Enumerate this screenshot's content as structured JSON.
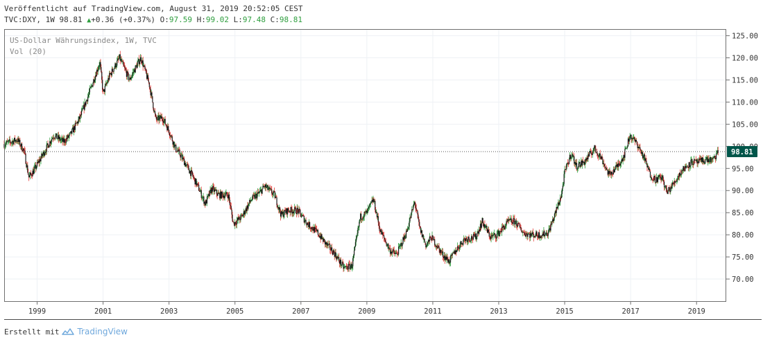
{
  "header": {
    "published": "Veröffentlicht auf TradingView.com, August 31, 2019 20:52:05 CEST",
    "symbol": "TVC:DXY, 1W 98.81",
    "arrow": "▲",
    "change": "+0.36 (+0.37%)",
    "o_label": "O:",
    "o_value": "97.59",
    "h_label": "H:",
    "h_value": "99.02",
    "l_label": "L:",
    "l_value": "97.48",
    "c_label": "C:",
    "c_value": "98.81"
  },
  "legend": {
    "series": "US-Dollar Währungsindex, 1W, TVC",
    "volume": "Vol (20)"
  },
  "footer": {
    "created_with": "Erstellt mit",
    "brand": "TradingView"
  },
  "colors": {
    "up": "#2e9e3e",
    "down": "#e53935",
    "candle_body": "#1a1a1a",
    "last_price_bg": "#00564a",
    "grid": "#eef1f5",
    "brand": "#6fa8dc"
  },
  "chart_data": {
    "type": "candlestick",
    "interval": "1W",
    "series_name": "US-Dollar Währungsindex, 1W, TVC",
    "last_price": 98.81,
    "ylim": [
      65,
      126.5
    ],
    "y_ticks": [
      "125.00",
      "120.00",
      "115.00",
      "110.00",
      "105.00",
      "100.00",
      "95.00",
      "90.00",
      "85.00",
      "80.00",
      "75.00",
      "70.00"
    ],
    "xlim": [
      1998.0,
      2019.9
    ],
    "x_ticks": [
      "1999",
      "2001",
      "2003",
      "2005",
      "2007",
      "2009",
      "2011",
      "2013",
      "2015",
      "2017",
      "2019"
    ],
    "grid": true,
    "path_points": [
      [
        1998.0,
        100.5
      ],
      [
        1998.4,
        101.5
      ],
      [
        1998.6,
        99.0
      ],
      [
        1998.75,
        93.0
      ],
      [
        1998.9,
        94.5
      ],
      [
        1999.2,
        98.5
      ],
      [
        1999.5,
        102.5
      ],
      [
        1999.8,
        101.0
      ],
      [
        2000.0,
        102.5
      ],
      [
        2000.3,
        106.5
      ],
      [
        2000.6,
        112.5
      ],
      [
        2000.9,
        119.0
      ],
      [
        2001.0,
        112.0
      ],
      [
        2001.2,
        116.0
      ],
      [
        2001.5,
        120.0
      ],
      [
        2001.8,
        115.0
      ],
      [
        2002.0,
        118.0
      ],
      [
        2002.15,
        120.0
      ],
      [
        2002.4,
        114.0
      ],
      [
        2002.6,
        106.0
      ],
      [
        2002.8,
        106.5
      ],
      [
        2003.0,
        103.5
      ],
      [
        2003.2,
        99.5
      ],
      [
        2003.35,
        98.0
      ],
      [
        2003.5,
        96.0
      ],
      [
        2003.7,
        93.5
      ],
      [
        2003.9,
        90.5
      ],
      [
        2004.1,
        87.0
      ],
      [
        2004.3,
        90.5
      ],
      [
        2004.5,
        89.0
      ],
      [
        2004.8,
        89.0
      ],
      [
        2004.95,
        82.5
      ],
      [
        2005.2,
        84.0
      ],
      [
        2005.5,
        88.0
      ],
      [
        2005.75,
        89.5
      ],
      [
        2005.9,
        91.0
      ],
      [
        2006.2,
        89.0
      ],
      [
        2006.4,
        84.5
      ],
      [
        2006.6,
        85.5
      ],
      [
        2006.9,
        85.5
      ],
      [
        2007.2,
        82.5
      ],
      [
        2007.5,
        80.5
      ],
      [
        2007.75,
        78.0
      ],
      [
        2008.0,
        76.0
      ],
      [
        2008.3,
        72.5
      ],
      [
        2008.55,
        73.0
      ],
      [
        2008.8,
        84.0
      ],
      [
        2009.0,
        85.0
      ],
      [
        2009.2,
        88.0
      ],
      [
        2009.4,
        81.0
      ],
      [
        2009.7,
        76.5
      ],
      [
        2009.9,
        75.5
      ],
      [
        2010.2,
        80.5
      ],
      [
        2010.45,
        87.5
      ],
      [
        2010.6,
        81.5
      ],
      [
        2010.8,
        77.5
      ],
      [
        2010.95,
        79.5
      ],
      [
        2011.3,
        75.5
      ],
      [
        2011.5,
        74.0
      ],
      [
        2011.7,
        76.5
      ],
      [
        2011.95,
        79.0
      ],
      [
        2012.3,
        79.5
      ],
      [
        2012.5,
        83.0
      ],
      [
        2012.75,
        79.5
      ],
      [
        2012.95,
        80.0
      ],
      [
        2013.3,
        83.0
      ],
      [
        2013.5,
        83.0
      ],
      [
        2013.75,
        80.5
      ],
      [
        2013.95,
        80.0
      ],
      [
        2014.3,
        80.0
      ],
      [
        2014.5,
        80.5
      ],
      [
        2014.7,
        84.5
      ],
      [
        2014.9,
        89.0
      ],
      [
        2015.0,
        94.0
      ],
      [
        2015.2,
        98.5
      ],
      [
        2015.35,
        95.5
      ],
      [
        2015.6,
        96.5
      ],
      [
        2015.9,
        99.5
      ],
      [
        2016.1,
        97.5
      ],
      [
        2016.35,
        93.5
      ],
      [
        2016.6,
        95.5
      ],
      [
        2016.8,
        98.0
      ],
      [
        2016.98,
        102.5
      ],
      [
        2017.2,
        100.5
      ],
      [
        2017.4,
        97.5
      ],
      [
        2017.6,
        93.5
      ],
      [
        2017.75,
        92.5
      ],
      [
        2017.95,
        93.0
      ],
      [
        2018.1,
        89.5
      ],
      [
        2018.3,
        91.5
      ],
      [
        2018.55,
        94.5
      ],
      [
        2018.85,
        96.5
      ],
      [
        2019.0,
        96.3
      ],
      [
        2019.3,
        97.0
      ],
      [
        2019.5,
        96.8
      ],
      [
        2019.66,
        98.81
      ]
    ]
  }
}
